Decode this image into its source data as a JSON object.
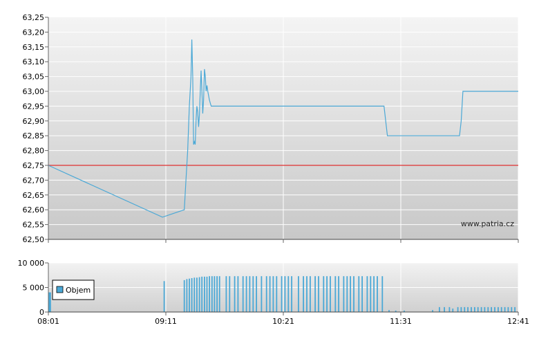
{
  "watermark": "www.patria.cz",
  "chart_data": [
    {
      "type": "line",
      "name": "price",
      "yticks": [
        "63,25",
        "63,20",
        "63,15",
        "63,10",
        "63,05",
        "63,00",
        "62,95",
        "62,90",
        "62,85",
        "62,80",
        "62,75",
        "62,70",
        "62,65",
        "62,60",
        "62,55",
        "62,50"
      ],
      "ylim": [
        62.5,
        63.25
      ],
      "xlim_minutes": [
        481,
        761
      ],
      "reference_line": {
        "value": 62.75,
        "color": "#e03030"
      },
      "line_color": "#4aa8d6",
      "grid": true,
      "points": [
        [
          481,
          62.75
        ],
        [
          549,
          62.575
        ],
        [
          562,
          62.6
        ],
        [
          563,
          62.7
        ],
        [
          564,
          62.8
        ],
        [
          565,
          62.95
        ],
        [
          566,
          63.05
        ],
        [
          566.5,
          63.175
        ],
        [
          567,
          63.05
        ],
        [
          567.5,
          62.82
        ],
        [
          568,
          62.83
        ],
        [
          568.5,
          62.82
        ],
        [
          569,
          62.9
        ],
        [
          569.5,
          62.95
        ],
        [
          570,
          62.93
        ],
        [
          570.5,
          62.88
        ],
        [
          571,
          62.92
        ],
        [
          571.5,
          63.0
        ],
        [
          572,
          63.07
        ],
        [
          572.5,
          63.0
        ],
        [
          573,
          62.925
        ],
        [
          573.5,
          62.97
        ],
        [
          574,
          63.075
        ],
        [
          574.5,
          63.05
        ],
        [
          575,
          63.0
        ],
        [
          575.5,
          63.02
        ],
        [
          576,
          63.0
        ],
        [
          577,
          62.97
        ],
        [
          578,
          62.95
        ],
        [
          681,
          62.95
        ],
        [
          683,
          62.85
        ],
        [
          726,
          62.85
        ],
        [
          727,
          62.9
        ],
        [
          728,
          63.0
        ],
        [
          761,
          63.0
        ]
      ]
    },
    {
      "type": "bar",
      "name": "volume",
      "legend": "Objem",
      "legend_color": "#4aa8d6",
      "yticks": [
        "10 000",
        "5 000",
        "0"
      ],
      "ylim": [
        0,
        10000
      ],
      "xticks": [
        "08:01",
        "09:11",
        "10:21",
        "11:31",
        "12:41"
      ],
      "grid": true,
      "bars": [
        [
          481.5,
          4000
        ],
        [
          481.8,
          1000
        ],
        [
          482.2,
          4000
        ],
        [
          550,
          6300
        ],
        [
          562,
          6500
        ],
        [
          563.5,
          6700
        ],
        [
          565,
          6800
        ],
        [
          566.5,
          6900
        ],
        [
          568,
          7000
        ],
        [
          569.5,
          7000
        ],
        [
          571,
          7100
        ],
        [
          572.5,
          7200
        ],
        [
          574,
          7200
        ],
        [
          575.5,
          7200
        ],
        [
          577,
          7300
        ],
        [
          578.5,
          7300
        ],
        [
          580,
          7300
        ],
        [
          581.5,
          7300
        ],
        [
          583,
          7300
        ],
        [
          587,
          7300
        ],
        [
          589,
          7300
        ],
        [
          592,
          7300
        ],
        [
          594,
          7300
        ],
        [
          597,
          7300
        ],
        [
          599,
          7300
        ],
        [
          601,
          7300
        ],
        [
          603,
          7300
        ],
        [
          605,
          7300
        ],
        [
          608,
          7300
        ],
        [
          611,
          7300
        ],
        [
          613,
          7300
        ],
        [
          615,
          7300
        ],
        [
          617,
          7300
        ],
        [
          620,
          7300
        ],
        [
          622,
          7300
        ],
        [
          624,
          7300
        ],
        [
          626,
          7300
        ],
        [
          630,
          7300
        ],
        [
          633,
          7300
        ],
        [
          635,
          7300
        ],
        [
          637,
          7300
        ],
        [
          640,
          7300
        ],
        [
          642,
          7300
        ],
        [
          645,
          7300
        ],
        [
          647,
          7300
        ],
        [
          649,
          7300
        ],
        [
          652,
          7300
        ],
        [
          654,
          7300
        ],
        [
          657,
          7300
        ],
        [
          659,
          7300
        ],
        [
          661,
          7300
        ],
        [
          663,
          7300
        ],
        [
          666,
          7300
        ],
        [
          668,
          7300
        ],
        [
          671,
          7300
        ],
        [
          673,
          7300
        ],
        [
          675,
          7300
        ],
        [
          677,
          7300
        ],
        [
          680,
          7300
        ],
        [
          684,
          400
        ],
        [
          688,
          300
        ],
        [
          693,
          300
        ],
        [
          710,
          400
        ],
        [
          714,
          1000
        ],
        [
          717,
          1000
        ],
        [
          720,
          1000
        ],
        [
          722,
          700
        ],
        [
          725,
          1000
        ],
        [
          727,
          1000
        ],
        [
          729,
          1000
        ],
        [
          731,
          1000
        ],
        [
          733,
          1000
        ],
        [
          735,
          1000
        ],
        [
          737,
          1000
        ],
        [
          739,
          1000
        ],
        [
          741,
          1000
        ],
        [
          743,
          1000
        ],
        [
          745,
          1000
        ],
        [
          747,
          1000
        ],
        [
          749,
          1000
        ],
        [
          751,
          1000
        ],
        [
          753,
          1000
        ],
        [
          755,
          1000
        ],
        [
          757,
          1000
        ],
        [
          759,
          1000
        ]
      ]
    }
  ]
}
